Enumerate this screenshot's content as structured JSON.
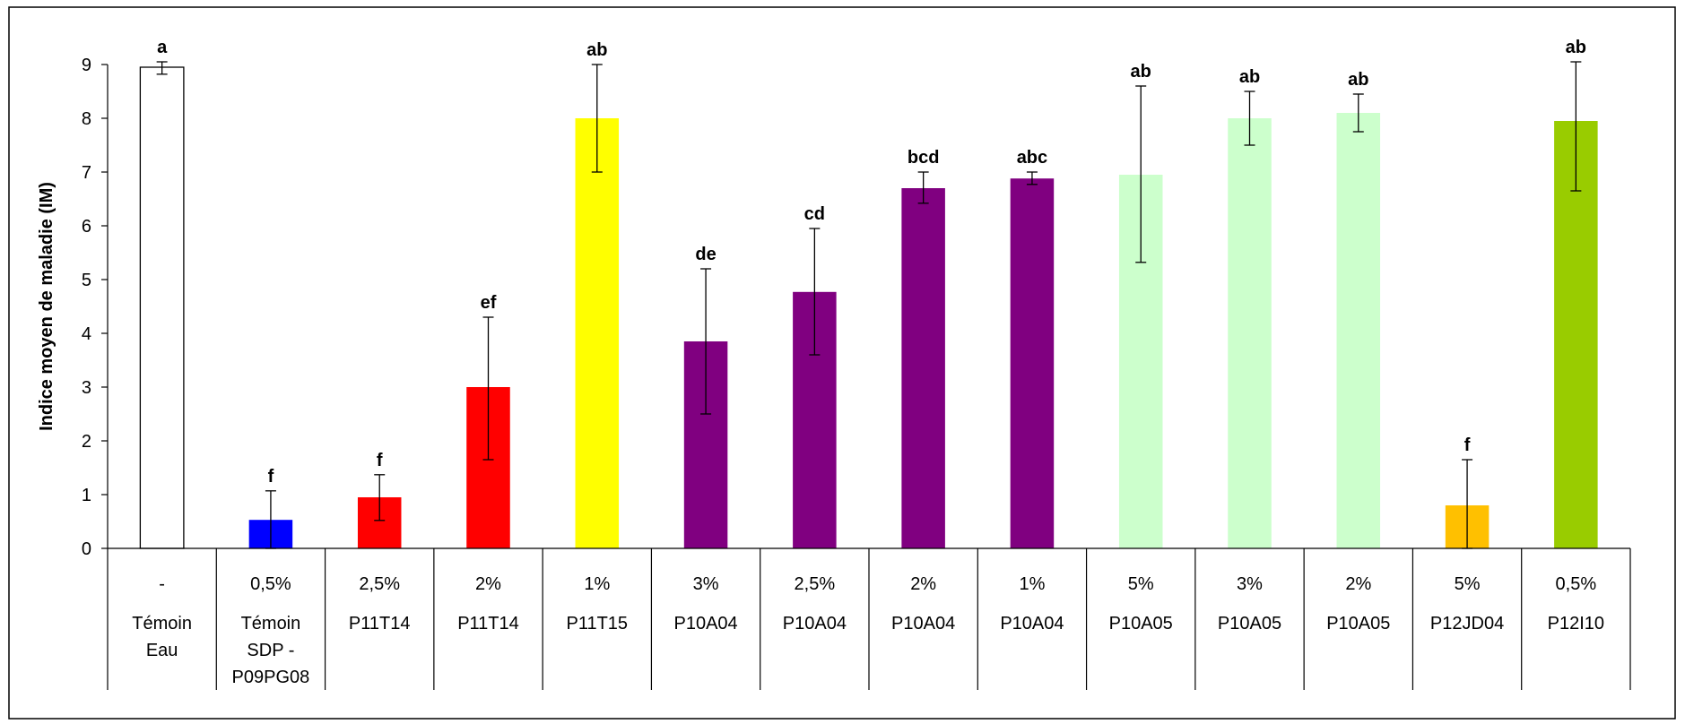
{
  "chart_data": {
    "type": "bar",
    "ylabel": "Indice moyen de maladie (IM)",
    "ylim": [
      0,
      9
    ],
    "yticks": [
      "0",
      "1",
      "2",
      "3",
      "4",
      "5",
      "6",
      "7",
      "8",
      "9"
    ],
    "grid": false,
    "legend": "none",
    "categories": [
      {
        "line1": "-",
        "line2": "Témoin",
        "line3": "Eau",
        "line4": ""
      },
      {
        "line1": "0,5%",
        "line2": "Témoin",
        "line3": "SDP -",
        "line4": "P09PG08"
      },
      {
        "line1": "2,5%",
        "line2": "P11T14",
        "line3": "",
        "line4": ""
      },
      {
        "line1": "2%",
        "line2": "P11T14",
        "line3": "",
        "line4": ""
      },
      {
        "line1": "1%",
        "line2": "P11T15",
        "line3": "",
        "line4": ""
      },
      {
        "line1": "3%",
        "line2": "P10A04",
        "line3": "",
        "line4": ""
      },
      {
        "line1": "2,5%",
        "line2": "P10A04",
        "line3": "",
        "line4": ""
      },
      {
        "line1": "2%",
        "line2": "P10A04",
        "line3": "",
        "line4": ""
      },
      {
        "line1": "1%",
        "line2": "P10A04",
        "line3": "",
        "line4": ""
      },
      {
        "line1": "5%",
        "line2": "P10A05",
        "line3": "",
        "line4": ""
      },
      {
        "line1": "3%",
        "line2": "P10A05",
        "line3": "",
        "line4": ""
      },
      {
        "line1": "2%",
        "line2": "P10A05",
        "line3": "",
        "line4": ""
      },
      {
        "line1": "5%",
        "line2": "P12JD04",
        "line3": "",
        "line4": ""
      },
      {
        "line1": "0,5%",
        "line2": "P12I10",
        "line3": "",
        "line4": ""
      }
    ],
    "values": [
      8.95,
      0.53,
      0.95,
      3.0,
      8.0,
      3.85,
      4.77,
      6.7,
      6.88,
      6.95,
      8.0,
      8.1,
      0.8,
      7.95
    ],
    "err_low": [
      8.82,
      0.0,
      0.52,
      1.65,
      7.0,
      2.5,
      3.6,
      6.42,
      6.77,
      5.32,
      7.5,
      7.75,
      0.0,
      6.65
    ],
    "err_high": [
      9.05,
      1.07,
      1.37,
      4.3,
      9.0,
      5.2,
      5.95,
      7.0,
      7.0,
      8.6,
      8.5,
      8.45,
      1.65,
      9.05
    ],
    "significance": [
      "a",
      "f",
      "f",
      "ef",
      "ab",
      "de",
      "cd",
      "bcd",
      "abc",
      "ab",
      "ab",
      "ab",
      "f",
      "ab"
    ],
    "colors": [
      "#ffffff",
      "#0000ff",
      "#ff0000",
      "#ff0000",
      "#ffff00",
      "#800080",
      "#800080",
      "#800080",
      "#800080",
      "#ccffcc",
      "#ccffcc",
      "#ccffcc",
      "#ffc000",
      "#99cc00"
    ],
    "bar_outline": [
      "#000000",
      "none",
      "none",
      "none",
      "none",
      "none",
      "none",
      "none",
      "none",
      "none",
      "none",
      "none",
      "none",
      "none"
    ]
  }
}
